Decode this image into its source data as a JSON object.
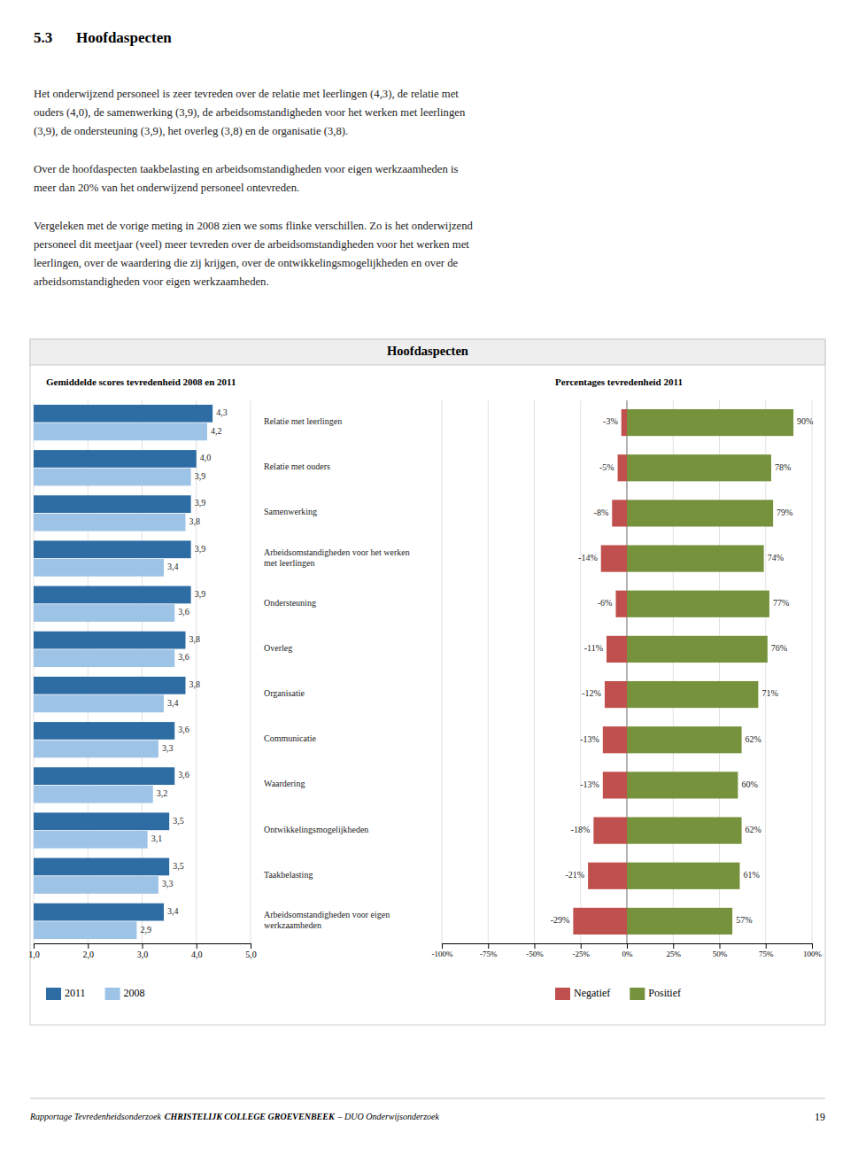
{
  "section_num": "5.3",
  "section_title": "Hoofdaspecten",
  "paragraphs": [
    "Het onderwijzend personeel is zeer tevreden over de relatie met leerlingen (4,3), de relatie met\nouders (4,0), de samenwerking (3,9), de arbeidsomstandigheden voor het werken met leerlingen\n(3,9), de ondersteuning (3,9), het overleg (3,8) en de organisatie (3,8).",
    "Over de hoofdaspecten taakbelasting en arbeidsomstandigheden voor eigen werkzaamheden is\nmeer dan 20% van het onderwijzend personeel ontevreden.",
    "Vergeleken met de vorige meting in 2008 zien we soms flinke verschillen. Zo is het onderwijzend\npersoneel dit meetjaar (veel) meer tevreden over de arbeidsomstandigheden voor het werken met\nleerlingen, over de waardering die zij krijgen, over de ontwikkelingsmogelijkheden en over de\narbeidsomstandigheden voor eigen werkzaamheden."
  ],
  "header": "Hoofdaspecten",
  "footer": [
    "Rapportage Tevredenheidsonderzoek",
    "CHRISTELIJK COLLEGE GROEVENBEEK",
    "– DUO Onderwijsonderzoek"
  ],
  "page_number": "19",
  "chart_data": [
    {
      "type": "bar",
      "orientation": "horizontal",
      "title": "Gemiddelde scores tevredenheid 2008 en 2011",
      "categories": [
        "Relatie met leerlingen",
        "Relatie met ouders",
        "Samenwerking",
        "Arbeidsomstandigheden voor het werken\nmet leerlingen",
        "Ondersteuning",
        "Overleg",
        "Organisatie",
        "Communicatie",
        "Waardering",
        "Ontwikkelingsmogelijkheden",
        "Taakbelasting",
        "Arbeidsomstandigheden voor eigen\nwerkzaamheden"
      ],
      "series": [
        {
          "name": "2011",
          "color": "#2E6DA4",
          "values": [
            4.3,
            4.0,
            3.9,
            3.9,
            3.9,
            3.8,
            3.8,
            3.6,
            3.6,
            3.5,
            3.5,
            3.4
          ],
          "value_labels": [
            "4,3",
            "4,0",
            "3,9",
            "3,9",
            "3,9",
            "3,8",
            "3,8",
            "3,6",
            "3,6",
            "3,5",
            "3,5",
            "3,4"
          ]
        },
        {
          "name": "2008",
          "color": "#9DC3E6",
          "values": [
            4.2,
            3.9,
            3.8,
            3.4,
            3.6,
            3.6,
            3.4,
            3.3,
            3.2,
            3.1,
            3.3,
            2.9
          ],
          "value_labels": [
            "4,2",
            "3,9",
            "3,8",
            "3,4",
            "3,6",
            "3,6",
            "3,4",
            "3,3",
            "3,2",
            "3,1",
            "3,3",
            "2,9"
          ]
        }
      ],
      "xlim": [
        1.0,
        5.0
      ],
      "xticks": [
        {
          "value": 1.0,
          "label": "1,0"
        },
        {
          "value": 2.0,
          "label": "2,0"
        },
        {
          "value": 3.0,
          "label": "3,0"
        },
        {
          "value": 4.0,
          "label": "4,0"
        },
        {
          "value": 5.0,
          "label": "5,0"
        }
      ],
      "grid": true,
      "data_labels": true,
      "legend": "bottom",
      "tick_labels": "x"
    },
    {
      "type": "bar",
      "orientation": "horizontal",
      "stacked": true,
      "title": "Percentages tevredenheid 2011",
      "categories": [
        "Relatie met leerlingen",
        "Relatie met ouders",
        "Samenwerking",
        "Arbeidsomstandigheden voor het werken\nmet leerlingen",
        "Ondersteuning",
        "Overleg",
        "Organisatie",
        "Communicatie",
        "Waardering",
        "Ontwikkelingsmogelijkheden",
        "Taakbelasting",
        "Arbeidsomstandigheden voor eigen\nwerkzaamheden"
      ],
      "series": [
        {
          "name": "Negatief",
          "color": "#C0504D",
          "values": [
            -3,
            -5,
            -8,
            -14,
            -6,
            -11,
            -12,
            -13,
            -13,
            -18,
            -21,
            -29
          ],
          "value_labels": [
            "-3%",
            "-5%",
            "-8%",
            "-14%",
            "-6%",
            "-11%",
            "-12%",
            "-13%",
            "-13%",
            "-18%",
            "-21%",
            "-29%"
          ]
        },
        {
          "name": "Positief",
          "color": "#76923C",
          "values": [
            90,
            78,
            79,
            74,
            77,
            76,
            71,
            62,
            60,
            62,
            61,
            57
          ],
          "value_labels": [
            "90%",
            "78%",
            "79%",
            "74%",
            "77%",
            "76%",
            "71%",
            "62%",
            "60%",
            "62%",
            "61%",
            "57%"
          ]
        }
      ],
      "xlim": [
        -100,
        100
      ],
      "xticks": [
        {
          "value": -100,
          "label": "-100%"
        },
        {
          "value": -75,
          "label": "-75%"
        },
        {
          "value": -50,
          "label": "-50%"
        },
        {
          "value": -25,
          "label": "-25%"
        },
        {
          "value": 0,
          "label": "0%"
        },
        {
          "value": 25,
          "label": "25%"
        },
        {
          "value": 50,
          "label": "50%"
        },
        {
          "value": 75,
          "label": "75%"
        },
        {
          "value": 100,
          "label": "100%"
        }
      ],
      "grid": true,
      "data_labels": true,
      "legend": "bottom",
      "tick_labels": "x"
    }
  ]
}
